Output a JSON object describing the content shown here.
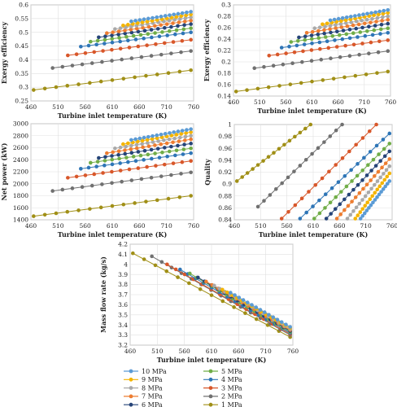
{
  "pressures": [
    "10 MPa",
    "9 MPa",
    "8 MPa",
    "7 MPa",
    "6 MPa",
    "5 MPa",
    "4 MPa",
    "3 MPa",
    "2 MPa",
    "1 MPa"
  ],
  "colors": [
    "#5b9bd5",
    "#f4b400",
    "#a9a9a9",
    "#ed7d31",
    "#264478",
    "#70ad47",
    "#2e75b6",
    "#d8572a",
    "#707070",
    "#a08f16"
  ],
  "legend": {
    "layout": "two-columns-below-bottom-chart",
    "items": [
      {
        "label": "10 MPa",
        "color": "#5b9bd5"
      },
      {
        "label": "9 MPa",
        "color": "#f4b400"
      },
      {
        "label": "8 MPa",
        "color": "#a9a9a9"
      },
      {
        "label": "7 MPa",
        "color": "#ed7d31"
      },
      {
        "label": "6 MPa",
        "color": "#264478"
      },
      {
        "label": "5 MPa",
        "color": "#70ad47"
      },
      {
        "label": "4 MPa",
        "color": "#2e75b6"
      },
      {
        "label": "3 MPa",
        "color": "#d8572a"
      },
      {
        "label": "2 MPa",
        "color": "#707070"
      },
      {
        "label": "1 MPa",
        "color": "#a08f16"
      }
    ]
  },
  "chart_data": [
    {
      "id": "exergy-efficiency-a",
      "type": "scatter",
      "xlabel": "Turbine inlet temperature (K)",
      "ylabel": "Exergy efficiency",
      "xlim": [
        460,
        760
      ],
      "ylim": [
        0.25,
        0.6
      ],
      "xticks": [
        460,
        510,
        560,
        610,
        660,
        710,
        760
      ],
      "yticks": [
        0.25,
        0.3,
        0.35,
        0.4,
        0.45,
        0.5,
        0.55,
        0.6
      ],
      "ytick_labels": [
        "0.25",
        "0.3",
        "0.35",
        "0.4",
        "0.45",
        "0.5",
        "0.55",
        "0.6"
      ],
      "grid": true,
      "series": [
        {
          "name": "10 MPa",
          "x_start": 645,
          "x_end": 755,
          "y_start": 0.54,
          "y_end": 0.575
        },
        {
          "name": "9 MPa",
          "x_start": 630,
          "x_end": 755,
          "y_start": 0.525,
          "y_end": 0.565
        },
        {
          "name": "8 MPa",
          "x_start": 615,
          "x_end": 755,
          "y_start": 0.512,
          "y_end": 0.555
        },
        {
          "name": "7 MPa",
          "x_start": 600,
          "x_end": 755,
          "y_start": 0.497,
          "y_end": 0.543
        },
        {
          "name": "6 MPa",
          "x_start": 585,
          "x_end": 755,
          "y_start": 0.482,
          "y_end": 0.53
        },
        {
          "name": "5 MPa",
          "x_start": 570,
          "x_end": 755,
          "y_start": 0.466,
          "y_end": 0.515
        },
        {
          "name": "4 MPa",
          "x_start": 552,
          "x_end": 755,
          "y_start": 0.448,
          "y_end": 0.5
        },
        {
          "name": "3 MPa",
          "x_start": 528,
          "x_end": 755,
          "y_start": 0.416,
          "y_end": 0.473
        },
        {
          "name": "2 MPa",
          "x_start": 500,
          "x_end": 755,
          "y_start": 0.37,
          "y_end": 0.432
        },
        {
          "name": "1 MPa",
          "x_start": 465,
          "x_end": 755,
          "y_start": 0.29,
          "y_end": 0.362
        }
      ]
    },
    {
      "id": "exergy-efficiency-b",
      "type": "scatter",
      "xlabel": "Turbine inlet temperature (K)",
      "ylabel": "Exergy efficiency",
      "xlim": [
        460,
        760
      ],
      "ylim": [
        0.14,
        0.3
      ],
      "xticks": [
        460,
        510,
        560,
        610,
        660,
        710,
        760
      ],
      "yticks": [
        0.14,
        0.16,
        0.18,
        0.2,
        0.22,
        0.24,
        0.26,
        0.28,
        0.3
      ],
      "ytick_labels": [
        "0.14",
        "0.16",
        "0.18",
        "0.2",
        "0.22",
        "0.24",
        "0.26",
        "0.28",
        "0.3"
      ],
      "grid": true,
      "series": [
        {
          "name": "10 MPa",
          "x_start": 645,
          "x_end": 755,
          "y_start": 0.273,
          "y_end": 0.291
        },
        {
          "name": "9 MPa",
          "x_start": 630,
          "x_end": 755,
          "y_start": 0.266,
          "y_end": 0.286
        },
        {
          "name": "8 MPa",
          "x_start": 615,
          "x_end": 755,
          "y_start": 0.259,
          "y_end": 0.28
        },
        {
          "name": "7 MPa",
          "x_start": 600,
          "x_end": 755,
          "y_start": 0.251,
          "y_end": 0.274
        },
        {
          "name": "6 MPa",
          "x_start": 585,
          "x_end": 755,
          "y_start": 0.243,
          "y_end": 0.267
        },
        {
          "name": "5 MPa",
          "x_start": 570,
          "x_end": 755,
          "y_start": 0.235,
          "y_end": 0.259
        },
        {
          "name": "4 MPa",
          "x_start": 552,
          "x_end": 755,
          "y_start": 0.225,
          "y_end": 0.251
        },
        {
          "name": "3 MPa",
          "x_start": 528,
          "x_end": 755,
          "y_start": 0.211,
          "y_end": 0.238
        },
        {
          "name": "2 MPa",
          "x_start": 500,
          "x_end": 755,
          "y_start": 0.189,
          "y_end": 0.219
        },
        {
          "name": "1 MPa",
          "x_start": 465,
          "x_end": 755,
          "y_start": 0.148,
          "y_end": 0.183
        }
      ]
    },
    {
      "id": "net-power",
      "type": "scatter",
      "xlabel": "Turbine inlet temperature (K)",
      "ylabel": "Net power (kW)",
      "xlim": [
        460,
        760
      ],
      "ylim": [
        1400,
        3000
      ],
      "xticks": [
        460,
        510,
        560,
        610,
        660,
        710,
        760
      ],
      "yticks": [
        1400,
        1600,
        1800,
        2000,
        2200,
        2400,
        2600,
        2800,
        3000
      ],
      "ytick_labels": [
        "1400",
        "1600",
        "1800",
        "2000",
        "2200",
        "2400",
        "2600",
        "2800",
        "3000"
      ],
      "grid": true,
      "series": [
        {
          "name": "10 MPa",
          "x_start": 645,
          "x_end": 755,
          "y_start": 2730,
          "y_end": 2910
        },
        {
          "name": "9 MPa",
          "x_start": 630,
          "x_end": 755,
          "y_start": 2660,
          "y_end": 2860
        },
        {
          "name": "8 MPa",
          "x_start": 615,
          "x_end": 755,
          "y_start": 2590,
          "y_end": 2800
        },
        {
          "name": "7 MPa",
          "x_start": 600,
          "x_end": 755,
          "y_start": 2510,
          "y_end": 2740
        },
        {
          "name": "6 MPa",
          "x_start": 585,
          "x_end": 755,
          "y_start": 2430,
          "y_end": 2670
        },
        {
          "name": "5 MPa",
          "x_start": 570,
          "x_end": 755,
          "y_start": 2350,
          "y_end": 2590
        },
        {
          "name": "4 MPa",
          "x_start": 552,
          "x_end": 755,
          "y_start": 2250,
          "y_end": 2510
        },
        {
          "name": "3 MPa",
          "x_start": 528,
          "x_end": 755,
          "y_start": 2100,
          "y_end": 2380
        },
        {
          "name": "2 MPa",
          "x_start": 500,
          "x_end": 755,
          "y_start": 1880,
          "y_end": 2190
        },
        {
          "name": "1 MPa",
          "x_start": 465,
          "x_end": 755,
          "y_start": 1460,
          "y_end": 1800
        }
      ]
    },
    {
      "id": "quality",
      "type": "scatter",
      "xlabel": "Turbine inlet temperature (K)",
      "ylabel": "Quality",
      "xlim": [
        460,
        760
      ],
      "ylim": [
        0.84,
        1.0
      ],
      "xticks": [
        460,
        510,
        560,
        610,
        660,
        710,
        760
      ],
      "yticks": [
        0.84,
        0.86,
        0.88,
        0.9,
        0.92,
        0.94,
        0.96,
        0.98,
        1.0
      ],
      "ytick_labels": [
        "0.84",
        "0.86",
        "0.88",
        "0.9",
        "0.92",
        "0.94",
        "0.96",
        "0.98",
        "1"
      ],
      "grid": true,
      "series": [
        {
          "name": "10 MPa",
          "x_start": 700,
          "x_end": 755,
          "y_start": 0.842,
          "y_end": 0.905
        },
        {
          "name": "9 MPa",
          "x_start": 690,
          "x_end": 755,
          "y_start": 0.842,
          "y_end": 0.918
        },
        {
          "name": "8 MPa",
          "x_start": 675,
          "x_end": 755,
          "y_start": 0.842,
          "y_end": 0.93
        },
        {
          "name": "7 MPa",
          "x_start": 655,
          "x_end": 755,
          "y_start": 0.842,
          "y_end": 0.942
        },
        {
          "name": "6 MPa",
          "x_start": 635,
          "x_end": 755,
          "y_start": 0.842,
          "y_end": 0.955
        },
        {
          "name": "5 MPa",
          "x_start": 612,
          "x_end": 755,
          "y_start": 0.842,
          "y_end": 0.968
        },
        {
          "name": "4 MPa",
          "x_start": 585,
          "x_end": 755,
          "y_start": 0.842,
          "y_end": 0.985
        },
        {
          "name": "3 MPa",
          "x_start": 550,
          "x_end": 730,
          "y_start": 0.842,
          "y_end": 1.0
        },
        {
          "name": "2 MPa",
          "x_start": 505,
          "x_end": 665,
          "y_start": 0.862,
          "y_end": 1.0
        },
        {
          "name": "1 MPa",
          "x_start": 465,
          "x_end": 605,
          "y_start": 0.905,
          "y_end": 1.0
        }
      ]
    },
    {
      "id": "mass-flow-rate",
      "type": "scatter",
      "xlabel": "Turbine inlet temperature (K)",
      "ylabel": "Mass flow rate (kg/s)",
      "xlim": [
        460,
        760
      ],
      "ylim": [
        3.2,
        4.2
      ],
      "xticks": [
        460,
        510,
        560,
        610,
        660,
        710,
        760
      ],
      "yticks": [
        3.2,
        3.3,
        3.4,
        3.5,
        3.6,
        3.7,
        3.8,
        3.9,
        4.0,
        4.1,
        4.2
      ],
      "ytick_labels": [
        "3.2",
        "3.3",
        "3.4",
        "3.5",
        "3.6",
        "3.7",
        "3.8",
        "3.9",
        "4",
        "4.1",
        "4.2"
      ],
      "grid": true,
      "series": [
        {
          "name": "10 MPa",
          "x_start": 645,
          "x_end": 755,
          "y_start": 3.72,
          "y_end": 3.38
        },
        {
          "name": "9 MPa",
          "x_start": 630,
          "x_end": 755,
          "y_start": 3.75,
          "y_end": 3.37
        },
        {
          "name": "8 MPa",
          "x_start": 615,
          "x_end": 755,
          "y_start": 3.79,
          "y_end": 3.36
        },
        {
          "name": "7 MPa",
          "x_start": 600,
          "x_end": 755,
          "y_start": 3.83,
          "y_end": 3.35
        },
        {
          "name": "6 MPa",
          "x_start": 585,
          "x_end": 755,
          "y_start": 3.87,
          "y_end": 3.34
        },
        {
          "name": "5 MPa",
          "x_start": 570,
          "x_end": 755,
          "y_start": 3.91,
          "y_end": 3.33
        },
        {
          "name": "4 MPa",
          "x_start": 552,
          "x_end": 755,
          "y_start": 3.95,
          "y_end": 3.32
        },
        {
          "name": "3 MPa",
          "x_start": 528,
          "x_end": 755,
          "y_start": 4.0,
          "y_end": 3.31
        },
        {
          "name": "2 MPa",
          "x_start": 500,
          "x_end": 755,
          "y_start": 4.08,
          "y_end": 3.3
        },
        {
          "name": "1 MPa",
          "x_start": 465,
          "x_end": 755,
          "y_start": 4.11,
          "y_end": 3.28
        }
      ]
    }
  ]
}
